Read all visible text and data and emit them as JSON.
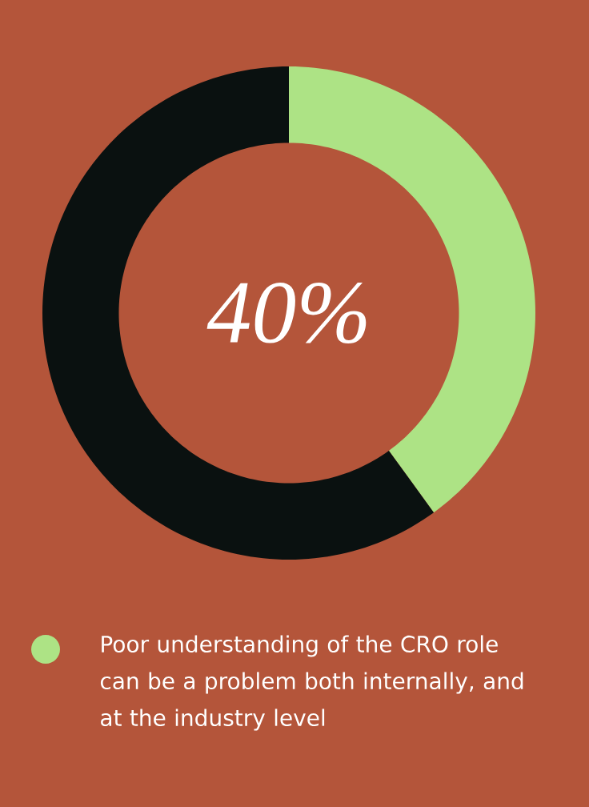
{
  "chart_data": {
    "type": "donut",
    "categories": [
      "Poor understanding of the CRO role can be a problem both internally, and at the industry level",
      null
    ],
    "values": [
      40,
      60
    ],
    "colors": [
      "#ade385",
      "#0a1110"
    ],
    "annotations": [
      "40%"
    ],
    "legend": "bottom"
  }
}
